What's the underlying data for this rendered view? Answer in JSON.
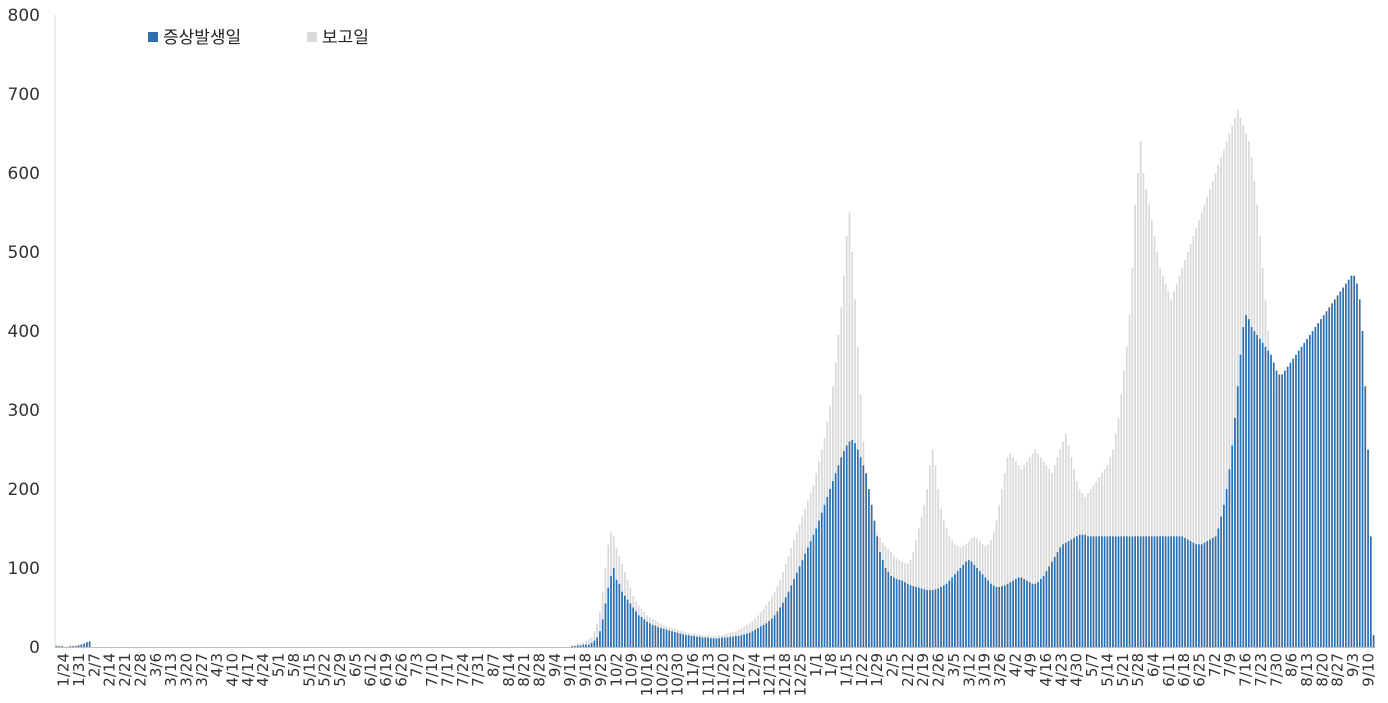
{
  "chart_data": {
    "type": "bar",
    "title": "",
    "xlabel": "",
    "ylabel": "",
    "ylim": [
      0,
      800
    ],
    "y_ticks": [
      0,
      100,
      200,
      300,
      400,
      500,
      600,
      700,
      800
    ],
    "grid": false,
    "legend_position": "top-left",
    "x_tick_labels": [
      "1/24",
      "1/31",
      "2/7",
      "2/14",
      "2/21",
      "2/28",
      "3/6",
      "3/13",
      "3/20",
      "3/27",
      "4/3",
      "4/10",
      "4/17",
      "4/24",
      "5/1",
      "5/8",
      "5/15",
      "5/22",
      "5/29",
      "6/5",
      "6/12",
      "6/19",
      "6/26",
      "7/3",
      "7/10",
      "7/17",
      "7/24",
      "7/31",
      "8/7",
      "8/14",
      "8/21",
      "8/28",
      "9/4",
      "9/11",
      "9/18",
      "9/25",
      "10/2",
      "10/9",
      "10/16",
      "10/23",
      "10/30",
      "11/6",
      "11/13",
      "11/20",
      "11/27",
      "12/4",
      "12/11",
      "12/18",
      "12/25",
      "1/1",
      "1/8",
      "1/15",
      "1/22",
      "1/29",
      "2/5",
      "2/12",
      "2/19",
      "2/26",
      "3/5",
      "3/12",
      "3/19",
      "3/26",
      "4/2",
      "4/9",
      "4/16",
      "4/23",
      "4/30",
      "5/7",
      "5/14",
      "5/21",
      "5/28",
      "6/4",
      "6/11",
      "6/18",
      "6/25",
      "7/2",
      "7/9",
      "7/16",
      "7/23",
      "7/30",
      "8/6",
      "8/13",
      "8/20",
      "8/27",
      "9/3",
      "9/10"
    ],
    "series": [
      {
        "name": "증상발생일",
        "color": "#2f6fad",
        "values": [
          1,
          1,
          1,
          0,
          0,
          1,
          1,
          1,
          2,
          3,
          4,
          6,
          7,
          0,
          0,
          0,
          0,
          0,
          0,
          0,
          0,
          0,
          0,
          0,
          0,
          0,
          0,
          0,
          0,
          0,
          0,
          0,
          0,
          0,
          0,
          0,
          0,
          0,
          0,
          0,
          0,
          0,
          0,
          0,
          0,
          0,
          0,
          0,
          0,
          0,
          0,
          0,
          0,
          0,
          0,
          0,
          0,
          0,
          0,
          0,
          0,
          0,
          0,
          0,
          0,
          0,
          0,
          0,
          0,
          0,
          0,
          0,
          0,
          0,
          0,
          0,
          0,
          0,
          0,
          0,
          0,
          0,
          0,
          0,
          0,
          0,
          0,
          0,
          0,
          0,
          0,
          0,
          0,
          0,
          0,
          0,
          0,
          0,
          0,
          0,
          0,
          0,
          0,
          0,
          0,
          0,
          0,
          0,
          0,
          0,
          0,
          0,
          0,
          0,
          0,
          0,
          0,
          0,
          0,
          0,
          0,
          0,
          0,
          0,
          0,
          0,
          0,
          0,
          0,
          0,
          0,
          0,
          0,
          0,
          0,
          0,
          0,
          0,
          0,
          0,
          0,
          0,
          0,
          0,
          0,
          0,
          0,
          0,
          0,
          0,
          0,
          0,
          0,
          0,
          0,
          0,
          0,
          0,
          0,
          0,
          0,
          0,
          0,
          0,
          0,
          0,
          0,
          0,
          0,
          0,
          0,
          0,
          0,
          0,
          0,
          0,
          0,
          0,
          0,
          0,
          0,
          0,
          0,
          0,
          0,
          0,
          1,
          1,
          2,
          2,
          3,
          3,
          3,
          5,
          8,
          12,
          20,
          35,
          55,
          75,
          90,
          100,
          85,
          80,
          70,
          65,
          60,
          55,
          50,
          45,
          40,
          38,
          35,
          32,
          30,
          28,
          27,
          25,
          24,
          23,
          22,
          21,
          20,
          19,
          18,
          17,
          16,
          15,
          15,
          14,
          14,
          13,
          13,
          12,
          12,
          12,
          11,
          11,
          11,
          11,
          12,
          12,
          12,
          13,
          13,
          14,
          14,
          15,
          16,
          17,
          18,
          20,
          22,
          24,
          26,
          28,
          30,
          33,
          36,
          40,
          45,
          50,
          56,
          63,
          70,
          78,
          86,
          94,
          102,
          110,
          118,
          126,
          134,
          142,
          150,
          160,
          170,
          180,
          190,
          200,
          210,
          220,
          230,
          240,
          248,
          255,
          260,
          262,
          258,
          250,
          240,
          230,
          220,
          200,
          180,
          160,
          140,
          120,
          110,
          100,
          95,
          90,
          88,
          86,
          85,
          84,
          82,
          80,
          78,
          77,
          76,
          75,
          74,
          73,
          72,
          72,
          72,
          73,
          74,
          76,
          78,
          80,
          84,
          88,
          92,
          96,
          100,
          104,
          108,
          110,
          108,
          104,
          100,
          96,
          92,
          88,
          84,
          80,
          78,
          76,
          76,
          77,
          78,
          80,
          82,
          84,
          86,
          88,
          88,
          86,
          84,
          82,
          80,
          80,
          82,
          86,
          90,
          96,
          102,
          108,
          114,
          120,
          126,
          130,
          132,
          134,
          136,
          138,
          140,
          142,
          142,
          142,
          140,
          140,
          140,
          140,
          140,
          140,
          140,
          140,
          140,
          140,
          140,
          140,
          140,
          140,
          140,
          140,
          140,
          140,
          140,
          140,
          140,
          140,
          140,
          140,
          140,
          140,
          140,
          140,
          140,
          140,
          140,
          140,
          140,
          140,
          140,
          138,
          136,
          134,
          132,
          130,
          130,
          130,
          132,
          134,
          136,
          138,
          140,
          150,
          165,
          180,
          200,
          225,
          255,
          290,
          330,
          370,
          405,
          420,
          415,
          405,
          400,
          395,
          390,
          385,
          380,
          375,
          370,
          360,
          350,
          345,
          345,
          350,
          355,
          360,
          365,
          370,
          375,
          380,
          385,
          390,
          395,
          400,
          405,
          410,
          415,
          420,
          425,
          430,
          435,
          440,
          445,
          450,
          455,
          460,
          465,
          470,
          470,
          460,
          440,
          400,
          330,
          250,
          140,
          15
        ]
      },
      {
        "name": "보고일",
        "color": "#d9d9d9",
        "values": [
          2,
          2,
          2,
          1,
          1,
          2,
          2,
          2,
          3,
          4,
          5,
          7,
          8,
          0,
          0,
          0,
          0,
          0,
          0,
          0,
          0,
          0,
          0,
          0,
          0,
          0,
          0,
          0,
          0,
          0,
          0,
          0,
          0,
          0,
          0,
          0,
          0,
          0,
          0,
          0,
          0,
          0,
          0,
          0,
          0,
          0,
          0,
          0,
          0,
          0,
          0,
          0,
          0,
          0,
          0,
          0,
          0,
          0,
          0,
          0,
          0,
          0,
          0,
          0,
          0,
          0,
          0,
          0,
          0,
          0,
          0,
          0,
          0,
          0,
          0,
          0,
          0,
          0,
          0,
          0,
          0,
          0,
          0,
          0,
          0,
          0,
          0,
          0,
          0,
          0,
          0,
          0,
          0,
          0,
          0,
          0,
          0,
          0,
          0,
          0,
          0,
          0,
          0,
          0,
          0,
          0,
          0,
          0,
          0,
          0,
          0,
          0,
          0,
          0,
          0,
          0,
          0,
          0,
          0,
          0,
          0,
          0,
          0,
          0,
          0,
          0,
          0,
          0,
          0,
          0,
          0,
          0,
          0,
          0,
          0,
          0,
          0,
          0,
          0,
          0,
          0,
          0,
          0,
          0,
          0,
          0,
          0,
          0,
          0,
          0,
          0,
          0,
          0,
          0,
          0,
          0,
          0,
          0,
          0,
          0,
          0,
          0,
          0,
          0,
          0,
          0,
          0,
          0,
          0,
          0,
          0,
          0,
          0,
          0,
          0,
          0,
          0,
          0,
          0,
          0,
          0,
          0,
          0,
          0,
          0,
          0,
          2,
          3,
          4,
          5,
          6,
          8,
          10,
          12,
          20,
          30,
          45,
          70,
          100,
          130,
          145,
          140,
          125,
          115,
          105,
          95,
          85,
          75,
          65,
          58,
          52,
          48,
          44,
          40,
          38,
          36,
          34,
          32,
          30,
          28,
          26,
          25,
          24,
          23,
          22,
          21,
          20,
          19,
          18,
          17,
          17,
          16,
          16,
          15,
          15,
          15,
          14,
          14,
          14,
          15,
          15,
          16,
          17,
          18,
          19,
          20,
          22,
          24,
          26,
          28,
          30,
          33,
          36,
          40,
          44,
          48,
          53,
          58,
          64,
          70,
          77,
          85,
          95,
          105,
          115,
          125,
          135,
          145,
          155,
          165,
          175,
          185,
          195,
          205,
          220,
          235,
          250,
          265,
          285,
          305,
          330,
          360,
          395,
          430,
          470,
          520,
          550,
          500,
          440,
          380,
          320,
          260,
          220,
          190,
          170,
          155,
          145,
          138,
          132,
          128,
          124,
          120,
          116,
          112,
          110,
          108,
          106,
          105,
          110,
          120,
          135,
          150,
          165,
          180,
          200,
          230,
          250,
          230,
          200,
          175,
          160,
          150,
          140,
          135,
          130,
          128,
          126,
          128,
          130,
          134,
          138,
          140,
          138,
          134,
          130,
          128,
          130,
          135,
          145,
          160,
          180,
          200,
          220,
          240,
          245,
          240,
          235,
          230,
          225,
          230,
          235,
          240,
          245,
          250,
          245,
          240,
          235,
          230,
          225,
          220,
          230,
          240,
          250,
          260,
          270,
          255,
          240,
          225,
          210,
          200,
          195,
          190,
          195,
          200,
          205,
          210,
          215,
          220,
          225,
          230,
          240,
          250,
          270,
          290,
          320,
          350,
          380,
          420,
          480,
          560,
          600,
          640,
          600,
          580,
          560,
          540,
          520,
          500,
          480,
          470,
          460,
          450,
          440,
          450,
          460,
          470,
          480,
          490,
          500,
          510,
          520,
          530,
          540,
          550,
          560,
          570,
          580,
          590,
          600,
          610,
          620,
          630,
          640,
          650,
          660,
          670,
          680,
          670,
          660,
          650,
          640,
          620,
          590,
          560,
          520,
          480,
          440,
          400,
          360,
          320,
          280
        ]
      }
    ]
  },
  "legend": {
    "items": [
      {
        "label": "증상발생일",
        "color": "#2f6fad"
      },
      {
        "label": "보고일",
        "color": "#d9d9d9"
      }
    ]
  }
}
